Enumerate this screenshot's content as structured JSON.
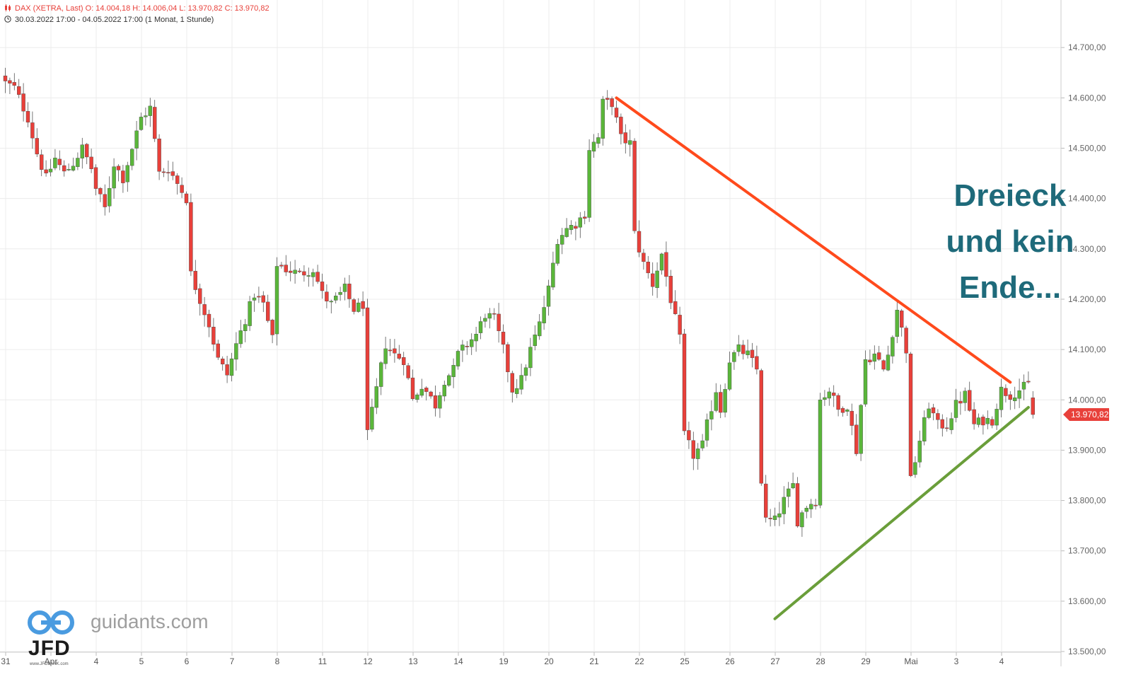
{
  "header": {
    "line1": "DAX (XETRA, Last)  O: 14.004,18  H: 14.006,04  L: 13.970,82  C: 13.970,82",
    "line2": "30.03.2022 17:00 - 04.05.2022 17:00   (1 Monat, 1 Stunde)",
    "icon1": "candlestick-icon",
    "icon2": "clock-icon"
  },
  "overlay": {
    "line1": "Dreieck",
    "line2": "und kein",
    "line3": "Ende..."
  },
  "logo": {
    "jfd": "JFD",
    "jfd_small": "www.JFDBANK.com",
    "site": "guidants.com",
    "icon": "jfd-logo-icon"
  },
  "colors": {
    "up": "#5ab63a",
    "down": "#e8403a",
    "resistance": "#ff4a1c",
    "support": "#6a9e3a",
    "text_overlay": "#1e6a7a",
    "price_tag": "#e8403a"
  },
  "chart_data": {
    "type": "candlestick",
    "instrument": "DAX (XETRA, Last)",
    "interval": "1 Stunde",
    "ylim": [
      13500,
      14750
    ],
    "yticks": [
      13500,
      13600,
      13700,
      13800,
      13900,
      14000,
      14100,
      14200,
      14300,
      14400,
      14500,
      14600,
      14700
    ],
    "ytick_labels": [
      "13.500,00",
      "13.600,00",
      "13.700,00",
      "13.800,00",
      "13.900,00",
      "14.000,00",
      "14.100,00",
      "14.200,00",
      "14.300,00",
      "14.400,00",
      "14.500,00",
      "14.600,00",
      "14.700,00"
    ],
    "xticks": [
      {
        "label": "31",
        "bar": 0
      },
      {
        "label": "Apr",
        "bar": 10
      },
      {
        "label": "4",
        "bar": 20
      },
      {
        "label": "5",
        "bar": 30
      },
      {
        "label": "6",
        "bar": 40
      },
      {
        "label": "7",
        "bar": 50
      },
      {
        "label": "8",
        "bar": 60
      },
      {
        "label": "11",
        "bar": 70
      },
      {
        "label": "12",
        "bar": 80
      },
      {
        "label": "13",
        "bar": 90
      },
      {
        "label": "14",
        "bar": 100
      },
      {
        "label": "19",
        "bar": 110
      },
      {
        "label": "20",
        "bar": 120
      },
      {
        "label": "21",
        "bar": 130
      },
      {
        "label": "22",
        "bar": 140
      },
      {
        "label": "25",
        "bar": 150
      },
      {
        "label": "26",
        "bar": 160
      },
      {
        "label": "27",
        "bar": 170
      },
      {
        "label": "28",
        "bar": 180
      },
      {
        "label": "29",
        "bar": 190
      },
      {
        "label": "Mai",
        "bar": 200
      },
      {
        "label": "3",
        "bar": 210
      },
      {
        "label": "4",
        "bar": 220
      }
    ],
    "last_price": 13970.82,
    "last_price_label": "13.970,82",
    "keypoints": [
      [
        0,
        14630
      ],
      [
        2,
        14620
      ],
      [
        5,
        14560
      ],
      [
        7,
        14490
      ],
      [
        9,
        14440
      ],
      [
        11,
        14480
      ],
      [
        13,
        14450
      ],
      [
        15,
        14470
      ],
      [
        17,
        14500
      ],
      [
        19,
        14460
      ],
      [
        20,
        14420
      ],
      [
        22,
        14380
      ],
      [
        24,
        14470
      ],
      [
        26,
        14440
      ],
      [
        28,
        14500
      ],
      [
        30,
        14560
      ],
      [
        32,
        14580
      ],
      [
        34,
        14450
      ],
      [
        36,
        14460
      ],
      [
        38,
        14430
      ],
      [
        40,
        14400
      ],
      [
        41,
        14250
      ],
      [
        43,
        14200
      ],
      [
        45,
        14150
      ],
      [
        47,
        14080
      ],
      [
        49,
        14050
      ],
      [
        51,
        14110
      ],
      [
        53,
        14160
      ],
      [
        55,
        14210
      ],
      [
        57,
        14190
      ],
      [
        59,
        14120
      ],
      [
        60,
        14270
      ],
      [
        62,
        14260
      ],
      [
        65,
        14250
      ],
      [
        68,
        14260
      ],
      [
        70,
        14210
      ],
      [
        72,
        14190
      ],
      [
        75,
        14220
      ],
      [
        77,
        14180
      ],
      [
        79,
        14190
      ],
      [
        80,
        13930
      ],
      [
        82,
        14020
      ],
      [
        84,
        14110
      ],
      [
        86,
        14090
      ],
      [
        88,
        14080
      ],
      [
        90,
        14000
      ],
      [
        92,
        14030
      ],
      [
        95,
        13990
      ],
      [
        97,
        14040
      ],
      [
        99,
        14060
      ],
      [
        100,
        14090
      ],
      [
        102,
        14110
      ],
      [
        104,
        14130
      ],
      [
        106,
        14170
      ],
      [
        108,
        14160
      ],
      [
        110,
        14100
      ],
      [
        112,
        14020
      ],
      [
        114,
        14040
      ],
      [
        116,
        14100
      ],
      [
        118,
        14150
      ],
      [
        120,
        14220
      ],
      [
        122,
        14320
      ],
      [
        124,
        14340
      ],
      [
        126,
        14350
      ],
      [
        128,
        14370
      ],
      [
        129,
        14500
      ],
      [
        131,
        14520
      ],
      [
        132,
        14590
      ],
      [
        134,
        14590
      ],
      [
        136,
        14520
      ],
      [
        138,
        14510
      ],
      [
        139,
        14330
      ],
      [
        141,
        14270
      ],
      [
        143,
        14230
      ],
      [
        145,
        14290
      ],
      [
        147,
        14200
      ],
      [
        149,
        14120
      ],
      [
        150,
        13930
      ],
      [
        152,
        13890
      ],
      [
        154,
        13910
      ],
      [
        155,
        13950
      ],
      [
        157,
        14020
      ],
      [
        158,
        13980
      ],
      [
        160,
        14080
      ],
      [
        162,
        14100
      ],
      [
        164,
        14090
      ],
      [
        166,
        14060
      ],
      [
        167,
        13840
      ],
      [
        168,
        13760
      ],
      [
        170,
        13760
      ],
      [
        172,
        13800
      ],
      [
        174,
        13830
      ],
      [
        175,
        13760
      ],
      [
        177,
        13790
      ],
      [
        179,
        13800
      ],
      [
        180,
        14000
      ],
      [
        182,
        14020
      ],
      [
        184,
        13980
      ],
      [
        186,
        13990
      ],
      [
        188,
        13900
      ],
      [
        190,
        14080
      ],
      [
        192,
        14090
      ],
      [
        194,
        14060
      ],
      [
        195,
        14090
      ],
      [
        197,
        14180
      ],
      [
        199,
        14100
      ],
      [
        200,
        13840
      ],
      [
        202,
        13920
      ],
      [
        204,
        13990
      ],
      [
        206,
        13950
      ],
      [
        208,
        13950
      ],
      [
        210,
        13990
      ],
      [
        212,
        14010
      ],
      [
        214,
        13950
      ],
      [
        216,
        13960
      ],
      [
        218,
        13960
      ],
      [
        220,
        14020
      ],
      [
        222,
        14010
      ],
      [
        224,
        14020
      ],
      [
        226,
        14030
      ],
      [
        227,
        13970.82
      ]
    ],
    "trendlines": [
      {
        "name": "resistance",
        "from": {
          "bar": 135,
          "price": 14600
        },
        "to": {
          "bar": 222,
          "price": 14035
        }
      },
      {
        "name": "support",
        "from": {
          "bar": 170,
          "price": 13565
        },
        "to": {
          "bar": 226,
          "price": 13985
        }
      }
    ]
  }
}
